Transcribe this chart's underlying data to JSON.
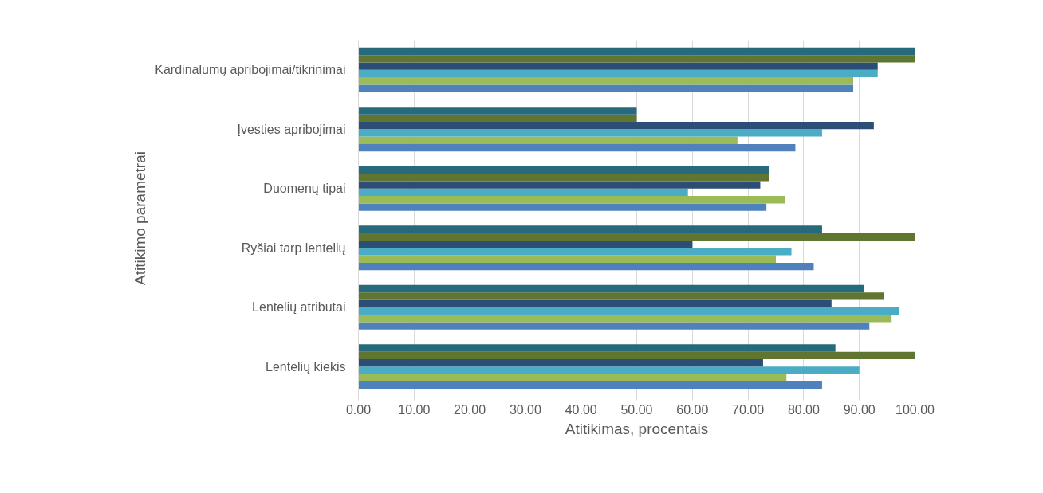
{
  "chart_data": {
    "type": "bar",
    "orientation": "horizontal",
    "xlabel": "Atitikimas, procentais",
    "ylabel": "Atitikimo parametrai",
    "categories": [
      "Kardinalumų apribojimai/tikrinimai",
      "Įvesties apribojimai",
      "Duomenų tipai",
      "Ryšiai tarp lentelių",
      "Lentelių atributai",
      "Lentelių kiekis"
    ],
    "series": [
      {
        "color": "#4f81bd",
        "values": [
          88.9,
          78.5,
          73.3,
          81.8,
          91.8,
          83.3
        ]
      },
      {
        "color": "#9bbb59",
        "values": [
          88.9,
          68.1,
          76.6,
          75.0,
          95.8,
          76.9
        ]
      },
      {
        "color": "#4bacc6",
        "values": [
          93.3,
          83.3,
          59.2,
          77.8,
          97.1,
          90.0
        ]
      },
      {
        "color": "#2c4d75",
        "values": [
          93.3,
          92.6,
          72.2,
          60.0,
          85.0,
          72.7
        ]
      },
      {
        "color": "#5f7530",
        "values": [
          100,
          50,
          73.8,
          100,
          94.4,
          100
        ]
      },
      {
        "color": "#276a7c",
        "values": [
          100,
          50,
          73.8,
          83.3,
          90.9,
          85.7
        ]
      }
    ],
    "xlim": [
      0,
      100
    ],
    "xticks": [
      {
        "value": 0,
        "label": "0.00"
      },
      {
        "value": 10,
        "label": "10.00"
      },
      {
        "value": 20,
        "label": "20.00"
      },
      {
        "value": 30,
        "label": "30.00"
      },
      {
        "value": 40,
        "label": "40.00"
      },
      {
        "value": 50,
        "label": "50.00"
      },
      {
        "value": 60,
        "label": "60.00"
      },
      {
        "value": 70,
        "label": "70.00"
      },
      {
        "value": 80,
        "label": "80.00"
      },
      {
        "value": 90,
        "label": "90.00"
      },
      {
        "value": 100,
        "label": "100.00"
      }
    ],
    "grid": "x"
  }
}
